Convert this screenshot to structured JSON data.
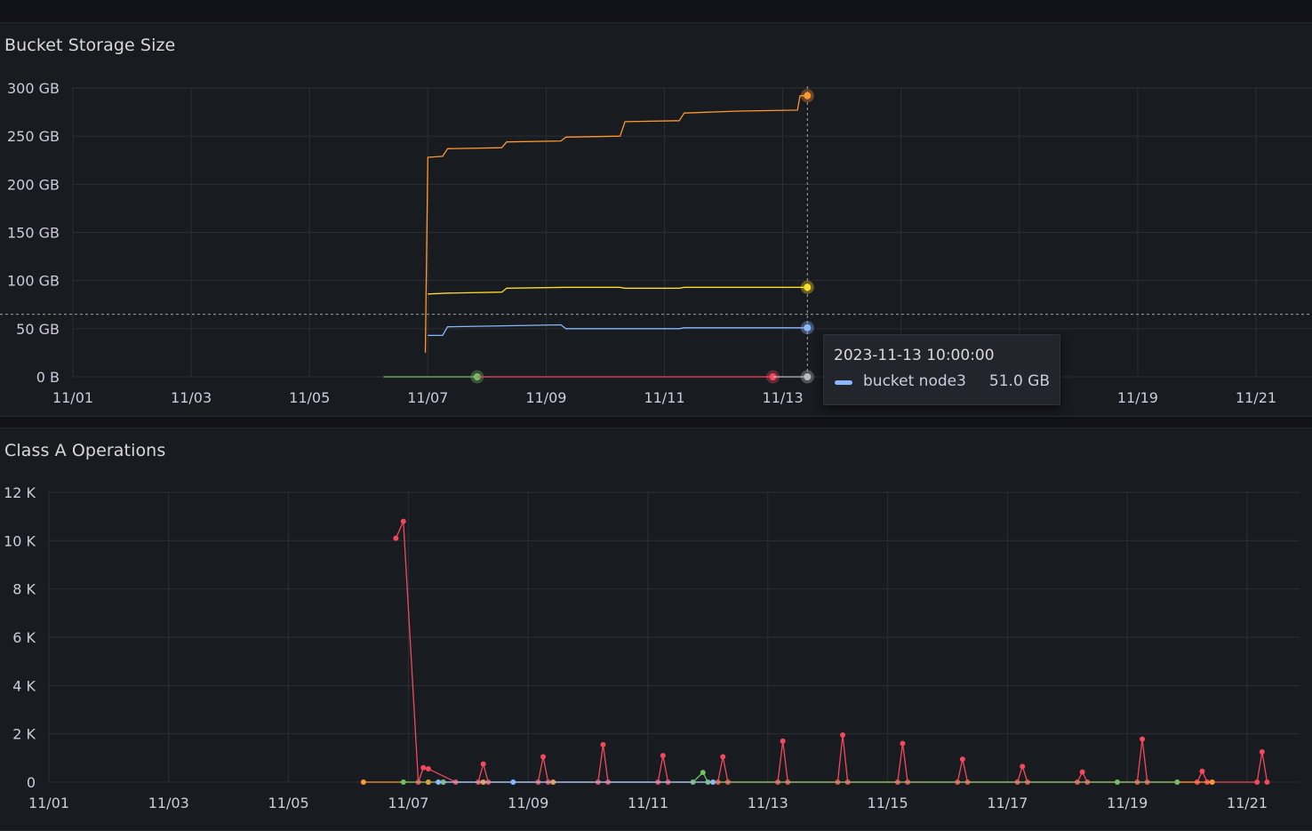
{
  "panels": [
    {
      "title": "Bucket Storage Size",
      "chart_data": {
        "type": "line",
        "x_axis": "time",
        "x_ticks": [
          "11/01",
          "11/03",
          "11/05",
          "11/07",
          "11/09",
          "11/11",
          "11/13",
          "11/15",
          "11/17",
          "11/19",
          "11/21"
        ],
        "y_ticks": [
          "0 B",
          "50 GB",
          "100 GB",
          "150 GB",
          "200 GB",
          "250 GB",
          "300 GB"
        ],
        "y_unit": "GB",
        "ylim": [
          0,
          300
        ],
        "grid": true,
        "series": [
          {
            "color": "#ff9830",
            "points": [
              [
                "11/06 23:00",
                25
              ],
              [
                "11/07 00:00",
                228
              ],
              [
                "11/07 06:00",
                229
              ],
              [
                "11/07 08:00",
                237
              ],
              [
                "11/08 06:00",
                238
              ],
              [
                "11/08 08:00",
                244
              ],
              [
                "11/09 06:00",
                245
              ],
              [
                "11/09 08:00",
                249
              ],
              [
                "11/10 06:00",
                250
              ],
              [
                "11/10 08:00",
                265
              ],
              [
                "11/11 06:00",
                266
              ],
              [
                "11/11 08:00",
                274
              ],
              [
                "11/12 06:00",
                276
              ],
              [
                "11/13 06:00",
                277
              ],
              [
                "11/13 07:00",
                292
              ],
              [
                "11/13 10:00",
                292
              ]
            ]
          },
          {
            "color": "#fade2a",
            "points": [
              [
                "11/07 00:00",
                86
              ],
              [
                "11/07 08:00",
                87
              ],
              [
                "11/08 06:00",
                88
              ],
              [
                "11/08 08:00",
                92
              ],
              [
                "11/09 08:00",
                93
              ],
              [
                "11/10 06:00",
                93
              ],
              [
                "11/10 08:00",
                92
              ],
              [
                "11/11 06:00",
                92
              ],
              [
                "11/11 08:00",
                93
              ],
              [
                "11/13 10:00",
                93
              ]
            ]
          },
          {
            "name": "bucket node3",
            "color": "#8ab8ff",
            "points": [
              [
                "11/07 00:00",
                43
              ],
              [
                "11/07 06:00",
                43
              ],
              [
                "11/07 08:00",
                52
              ],
              [
                "11/09 06:00",
                54
              ],
              [
                "11/09 08:00",
                50
              ],
              [
                "11/11 06:00",
                50
              ],
              [
                "11/11 08:00",
                51
              ],
              [
                "11/12 06:00",
                51
              ],
              [
                "11/13 10:00",
                51
              ]
            ]
          },
          {
            "color": "#73bf69",
            "points": [
              [
                "11/06 06:00",
                0
              ],
              [
                "11/07 20:00",
                0
              ]
            ]
          },
          {
            "color": "#f2495c",
            "points": [
              [
                "11/07 20:00",
                0
              ],
              [
                "11/12 20:00",
                0
              ]
            ]
          },
          {
            "color": "#b8bcc4",
            "points": [
              [
                "11/12 20:00",
                0
              ],
              [
                "11/13 10:00",
                0
              ]
            ]
          }
        ],
        "hover": {
          "time": "11/13 10:00",
          "value": 65
        }
      },
      "tooltip": {
        "time": "2023-11-13 10:00:00",
        "series_name": "bucket node3",
        "value": "51.0 GB",
        "color": "#8ab8ff"
      }
    },
    {
      "title": "Class A Operations",
      "chart_data": {
        "type": "line",
        "x_axis": "time",
        "x_ticks": [
          "11/01",
          "11/03",
          "11/05",
          "11/07",
          "11/09",
          "11/11",
          "11/13",
          "11/15",
          "11/17",
          "11/19",
          "11/21"
        ],
        "y_ticks": [
          "0",
          "2 K",
          "4 K",
          "6 K",
          "8 K",
          "10 K",
          "12 K"
        ],
        "ylim": [
          0,
          12000
        ],
        "grid": true,
        "series": [
          {
            "color": "#f2495c",
            "points": [
              [
                "11/06 19:00",
                10100
              ],
              [
                "11/06 22:00",
                10800
              ],
              [
                "11/07 04:00",
                0
              ],
              [
                "11/07 06:00",
                600
              ],
              [
                "11/07 08:00",
                550
              ],
              [
                "11/07 19:00",
                0
              ],
              [
                "11/08 04:00",
                0
              ],
              [
                "11/08 06:00",
                750
              ],
              [
                "11/08 08:00",
                0
              ],
              [
                "11/09 04:00",
                0
              ],
              [
                "11/09 06:00",
                1050
              ],
              [
                "11/09 08:00",
                0
              ],
              [
                "11/10 04:00",
                0
              ],
              [
                "11/10 06:00",
                1550
              ],
              [
                "11/10 08:00",
                0
              ],
              [
                "11/11 04:00",
                0
              ],
              [
                "11/11 06:00",
                1100
              ],
              [
                "11/11 08:00",
                0
              ],
              [
                "11/12 04:00",
                0
              ],
              [
                "11/12 06:00",
                1050
              ],
              [
                "11/12 08:00",
                0
              ],
              [
                "11/13 04:00",
                0
              ],
              [
                "11/13 06:00",
                1700
              ],
              [
                "11/13 08:00",
                0
              ],
              [
                "11/14 04:00",
                0
              ],
              [
                "11/14 06:00",
                1950
              ],
              [
                "11/14 08:00",
                0
              ],
              [
                "11/15 04:00",
                0
              ],
              [
                "11/15 06:00",
                1600
              ],
              [
                "11/15 08:00",
                0
              ],
              [
                "11/16 04:00",
                0
              ],
              [
                "11/16 06:00",
                950
              ],
              [
                "11/16 08:00",
                0
              ],
              [
                "11/17 04:00",
                0
              ],
              [
                "11/17 06:00",
                650
              ],
              [
                "11/17 08:00",
                0
              ],
              [
                "11/18 04:00",
                0
              ],
              [
                "11/18 06:00",
                420
              ],
              [
                "11/18 08:00",
                0
              ],
              [
                "11/19 04:00",
                0
              ],
              [
                "11/19 06:00",
                1780
              ],
              [
                "11/19 08:00",
                0
              ],
              [
                "11/20 04:00",
                0
              ],
              [
                "11/20 06:00",
                450
              ],
              [
                "11/20 08:00",
                0
              ],
              [
                "11/21 04:00",
                0
              ],
              [
                "11/21 06:00",
                1250
              ],
              [
                "11/21 08:00",
                0
              ]
            ]
          },
          {
            "color": "#ff9830",
            "points": [
              [
                "11/06 06:00",
                0
              ],
              [
                "11/07 08:00",
                0
              ],
              [
                "11/07 14:00",
                0
              ],
              [
                "11/08 06:00",
                0
              ],
              [
                "11/09 10:00",
                0
              ],
              [
                "11/20 10:00",
                0
              ]
            ]
          },
          {
            "color": "#73bf69",
            "points": [
              [
                "11/06 22:00",
                0
              ],
              [
                "11/07 14:00",
                0
              ],
              [
                "11/11 18:00",
                0
              ],
              [
                "11/11 22:00",
                400
              ],
              [
                "11/12 00:00",
                0
              ],
              [
                "11/18 20:00",
                0
              ],
              [
                "11/19 20:00",
                0
              ]
            ]
          },
          {
            "color": "#8ab8ff",
            "points": [
              [
                "11/07 12:00",
                0
              ],
              [
                "11/08 18:00",
                0
              ],
              [
                "11/12 02:00",
                0
              ]
            ]
          }
        ]
      }
    }
  ]
}
